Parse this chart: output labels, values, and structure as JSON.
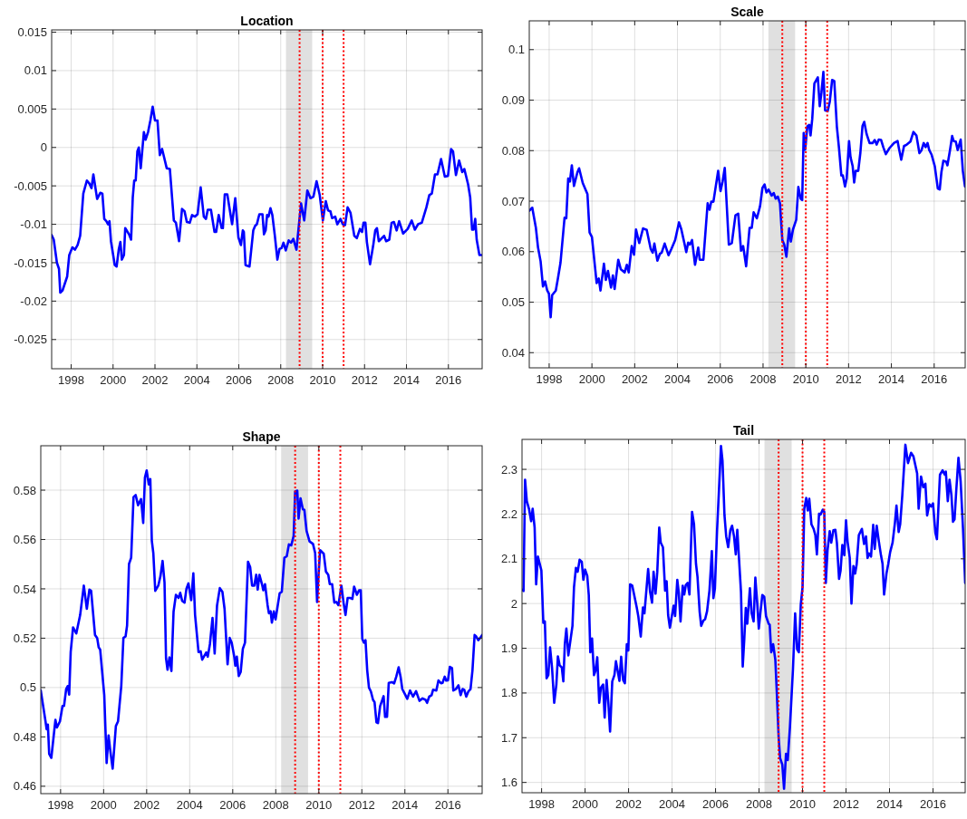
{
  "chart_data": [
    {
      "type": "line",
      "title": "Location",
      "grid": true,
      "xlim": [
        1997.07,
        2017.61
      ],
      "ylim": [
        -0.0288,
        0.0153
      ],
      "xticks": [
        1998,
        2000,
        2002,
        2004,
        2006,
        2008,
        2010,
        2012,
        2014,
        2016
      ],
      "yticks": [
        -0.025,
        -0.02,
        -0.015,
        -0.01,
        -0.005,
        0,
        0.005,
        0.01,
        0.015
      ],
      "bands": [
        {
          "axis": "x",
          "from": 2008.25,
          "to": 2009.5,
          "color": "#e0e0e0"
        }
      ],
      "ref_lines": [
        {
          "axis": "x",
          "value": 2008.9,
          "color": "#ff0000",
          "line_style": "dotted"
        },
        {
          "axis": "x",
          "value": 2010.0,
          "color": "#ff0000",
          "line_style": "dotted"
        },
        {
          "axis": "x",
          "value": 2011.0,
          "color": "#ff0000",
          "line_style": "dotted"
        }
      ],
      "x": [
        1997.07,
        1997.17,
        1997.32,
        1997.42,
        1997.48,
        1997.59,
        1997.81,
        1997.91,
        1998.06,
        1998.18,
        1998.31,
        1998.43,
        1998.58,
        1998.75,
        1998.87,
        1998.97,
        1999.06,
        1999.24,
        1999.39,
        1999.49,
        1999.58,
        1999.68,
        1999.76,
        1999.83,
        1999.9,
        2000.08,
        2000.17,
        2000.27,
        2000.35,
        2000.42,
        2000.52,
        2000.58,
        2000.76,
        2000.86,
        2000.94,
        2001.01,
        2001.08,
        2001.16,
        2001.23,
        2001.32,
        2001.47,
        2001.55,
        2001.67,
        2001.78,
        2001.89,
        2002.0,
        2002.12,
        2002.23,
        2002.34,
        2002.56,
        2002.71,
        2002.9,
        2003.0,
        2003.15,
        2003.29,
        2003.41,
        2003.52,
        2003.66,
        2003.77,
        2003.91,
        2004.03,
        2004.18,
        2004.33,
        2004.43,
        2004.52,
        2004.67,
        2004.84,
        2004.92,
        2005.04,
        2005.18,
        2005.24,
        2005.33,
        2005.45,
        2005.68,
        2005.83,
        2005.98,
        2006.1,
        2006.19,
        2006.24,
        2006.32,
        2006.39,
        2006.51,
        2006.69,
        2006.78,
        2006.86,
        2006.98,
        2007.13,
        2007.2,
        2007.28,
        2007.35,
        2007.42,
        2007.51,
        2007.6,
        2007.72,
        2007.84,
        2007.94,
        2008.04,
        2008.13,
        2008.24,
        2008.38,
        2008.49,
        2008.6,
        2008.75,
        2008.97,
        2009.12,
        2009.27,
        2009.42,
        2009.56,
        2009.71,
        2009.86,
        2010.01,
        2010.15,
        2010.26,
        2010.37,
        2010.45,
        2010.6,
        2010.7,
        2010.85,
        2010.96,
        2011.07,
        2011.19,
        2011.33,
        2011.51,
        2011.63,
        2011.78,
        2011.88,
        2011.95,
        2012.04,
        2012.11,
        2012.26,
        2012.41,
        2012.51,
        2012.59,
        2012.68,
        2012.93,
        2013.03,
        2013.18,
        2013.29,
        2013.4,
        2013.53,
        2013.65,
        2013.84,
        2014.06,
        2014.25,
        2014.4,
        2014.55,
        2014.73,
        2014.95,
        2015.09,
        2015.21,
        2015.36,
        2015.48,
        2015.65,
        2015.83,
        2015.98,
        2016.13,
        2016.22,
        2016.36,
        2016.51,
        2016.66,
        2016.76,
        2016.94,
        2017.04,
        2017.13,
        2017.2,
        2017.28,
        2017.35,
        2017.48,
        2017.57
      ],
      "series": [
        {
          "color": "#0000ff",
          "values": [
            -0.0114,
            -0.012,
            -0.015,
            -0.0158,
            -0.0189,
            -0.0186,
            -0.0168,
            -0.014,
            -0.013,
            -0.0133,
            -0.0127,
            -0.0115,
            -0.006,
            -0.0043,
            -0.0047,
            -0.0053,
            -0.0035,
            -0.0067,
            -0.0059,
            -0.006,
            -0.0093,
            -0.0096,
            -0.01,
            -0.0096,
            -0.0122,
            -0.0153,
            -0.0155,
            -0.0133,
            -0.0123,
            -0.0146,
            -0.014,
            -0.0105,
            -0.0113,
            -0.012,
            -0.0065,
            -0.0043,
            -0.0043,
            -0.0005,
            0.0,
            -0.0027,
            0.002,
            0.001,
            0.002,
            0.0035,
            0.0053,
            0.0035,
            0.0035,
            -0.001,
            -0.0002,
            -0.0027,
            -0.0028,
            -0.0095,
            -0.0098,
            -0.0122,
            -0.008,
            -0.0083,
            -0.0097,
            -0.0098,
            -0.0088,
            -0.009,
            -0.0087,
            -0.0052,
            -0.009,
            -0.0093,
            -0.0081,
            -0.0081,
            -0.011,
            -0.011,
            -0.0088,
            -0.0105,
            -0.0105,
            -0.0061,
            -0.0061,
            -0.01,
            -0.0066,
            -0.0117,
            -0.0127,
            -0.0108,
            -0.011,
            -0.0153,
            -0.0154,
            -0.0155,
            -0.0108,
            -0.0102,
            -0.01,
            -0.0087,
            -0.0087,
            -0.0113,
            -0.0108,
            -0.0088,
            -0.009,
            -0.0079,
            -0.0088,
            -0.0115,
            -0.0146,
            -0.0132,
            -0.0131,
            -0.0124,
            -0.0134,
            -0.0121,
            -0.0124,
            -0.0119,
            -0.0133,
            -0.0073,
            -0.0095,
            -0.0056,
            -0.0066,
            -0.0064,
            -0.0044,
            -0.0062,
            -0.0095,
            -0.007,
            -0.0082,
            -0.0083,
            -0.0092,
            -0.009,
            -0.01,
            -0.0093,
            -0.01,
            -0.0101,
            -0.0078,
            -0.0085,
            -0.0115,
            -0.0118,
            -0.0106,
            -0.011,
            -0.0098,
            -0.0098,
            -0.0123,
            -0.0152,
            -0.0128,
            -0.0108,
            -0.0105,
            -0.0122,
            -0.0115,
            -0.0122,
            -0.012,
            -0.0098,
            -0.0097,
            -0.0108,
            -0.0096,
            -0.0112,
            -0.0106,
            -0.0095,
            -0.0107,
            -0.01,
            -0.0098,
            -0.0078,
            -0.0062,
            -0.006,
            -0.0035,
            -0.0035,
            -0.0015,
            -0.0038,
            -0.0037,
            -0.0002,
            -0.0005,
            -0.0036,
            -0.0017,
            -0.0032,
            -0.0028,
            -0.0048,
            -0.0065,
            -0.0107,
            -0.0107,
            -0.0093,
            -0.012,
            -0.014,
            -0.014
          ]
        }
      ]
    },
    {
      "type": "line",
      "title": "Scale",
      "grid": true,
      "xlim": [
        1997.07,
        2017.45
      ],
      "ylim": [
        0.037,
        0.1057
      ],
      "xticks": [
        1998,
        2000,
        2002,
        2004,
        2006,
        2008,
        2010,
        2012,
        2014,
        2016
      ],
      "yticks": [
        0.04,
        0.05,
        0.06,
        0.07,
        0.08,
        0.09,
        0.1
      ],
      "bands": [
        {
          "axis": "x",
          "from": 2008.25,
          "to": 2009.5,
          "color": "#e0e0e0"
        }
      ],
      "ref_lines": [
        {
          "axis": "x",
          "value": 2008.9,
          "color": "#ff0000",
          "line_style": "dotted"
        },
        {
          "axis": "x",
          "value": 2010.0,
          "color": "#ff0000",
          "line_style": "dotted"
        },
        {
          "axis": "x",
          "value": 2011.0,
          "color": "#ff0000",
          "line_style": "dotted"
        }
      ],
      "x": [
        1997.07,
        1997.21,
        1997.38,
        1997.48,
        1997.6,
        1997.71,
        1997.81,
        1997.91,
        1997.99,
        1998.07,
        1998.14,
        1998.31,
        1998.41,
        1998.53,
        1998.72,
        1998.8,
        1998.89,
        1998.97,
        1999.06,
        1999.16,
        1999.32,
        1999.4,
        1999.57,
        1999.79,
        1999.89,
        2000.0,
        2000.22,
        2000.32,
        2000.4,
        2000.56,
        2000.65,
        2000.75,
        2000.89,
        2000.98,
        2001.06,
        2001.23,
        2001.35,
        2001.53,
        2001.63,
        2001.72,
        2001.86,
        2001.97,
        2002.06,
        2002.21,
        2002.39,
        2002.56,
        2002.75,
        2002.84,
        2002.92,
        2003.06,
        2003.18,
        2003.26,
        2003.4,
        2003.58,
        2003.72,
        2003.89,
        2004.07,
        2004.18,
        2004.32,
        2004.41,
        2004.5,
        2004.58,
        2004.68,
        2004.82,
        2004.97,
        2005.04,
        2005.21,
        2005.41,
        2005.5,
        2005.58,
        2005.68,
        2005.9,
        2006.01,
        2006.11,
        2006.21,
        2006.4,
        2006.54,
        2006.71,
        2006.84,
        2006.97,
        2007.07,
        2007.21,
        2007.37,
        2007.47,
        2007.56,
        2007.71,
        2007.86,
        2007.97,
        2008.07,
        2008.16,
        2008.26,
        2008.4,
        2008.5,
        2008.59,
        2008.69,
        2008.79,
        2008.9,
        2008.99,
        2009.09,
        2009.22,
        2009.3,
        2009.4,
        2009.55,
        2009.65,
        2009.76,
        2009.83,
        2009.9,
        2009.97,
        2010.07,
        2010.16,
        2010.22,
        2010.3,
        2010.4,
        2010.56,
        2010.65,
        2010.73,
        2010.82,
        2010.9,
        2011.02,
        2011.12,
        2011.23,
        2011.33,
        2011.45,
        2011.55,
        2011.66,
        2011.73,
        2011.83,
        2011.91,
        2012.02,
        2012.09,
        2012.19,
        2012.26,
        2012.33,
        2012.45,
        2012.55,
        2012.65,
        2012.73,
        2012.84,
        2012.98,
        2013.12,
        2013.22,
        2013.31,
        2013.41,
        2013.52,
        2013.62,
        2013.74,
        2013.91,
        2014.12,
        2014.29,
        2014.35,
        2014.46,
        2014.59,
        2014.72,
        2014.89,
        2015.03,
        2015.17,
        2015.31,
        2015.41,
        2015.51,
        2015.6,
        2015.69,
        2015.77,
        2015.88,
        2016.03,
        2016.17,
        2016.26,
        2016.34,
        2016.43,
        2016.56,
        2016.62,
        2016.74,
        2016.84,
        2016.91,
        2017.01,
        2017.1,
        2017.24,
        2017.34,
        2017.44
      ],
      "series": [
        {
          "color": "#0000ff",
          "values": [
            0.0681,
            0.0687,
            0.0647,
            0.0608,
            0.0581,
            0.0531,
            0.0541,
            0.0523,
            0.0517,
            0.047,
            0.0514,
            0.0523,
            0.0547,
            0.0578,
            0.0667,
            0.0666,
            0.0745,
            0.0739,
            0.0771,
            0.073,
            0.0757,
            0.0765,
            0.0736,
            0.0714,
            0.0638,
            0.0629,
            0.0538,
            0.0547,
            0.0523,
            0.0576,
            0.0544,
            0.0562,
            0.0529,
            0.0553,
            0.0526,
            0.0584,
            0.0565,
            0.0559,
            0.0574,
            0.0559,
            0.0611,
            0.0594,
            0.0644,
            0.0617,
            0.0646,
            0.0643,
            0.0605,
            0.0598,
            0.0616,
            0.0582,
            0.0596,
            0.0598,
            0.0616,
            0.0593,
            0.0606,
            0.0623,
            0.0658,
            0.0644,
            0.0617,
            0.0599,
            0.0618,
            0.0614,
            0.0623,
            0.0574,
            0.0608,
            0.0584,
            0.0584,
            0.0696,
            0.0683,
            0.0699,
            0.0699,
            0.076,
            0.072,
            0.0739,
            0.0766,
            0.0614,
            0.0617,
            0.0672,
            0.0675,
            0.0602,
            0.0611,
            0.0571,
            0.0647,
            0.0647,
            0.0678,
            0.0666,
            0.069,
            0.0726,
            0.0733,
            0.0717,
            0.0723,
            0.0711,
            0.0716,
            0.0705,
            0.0709,
            0.0696,
            0.0623,
            0.0614,
            0.059,
            0.0646,
            0.062,
            0.0644,
            0.0663,
            0.0728,
            0.0705,
            0.0702,
            0.0835,
            0.0802,
            0.0848,
            0.0851,
            0.083,
            0.0863,
            0.0933,
            0.0945,
            0.0888,
            0.0915,
            0.0956,
            0.088,
            0.0878,
            0.0897,
            0.094,
            0.0938,
            0.0848,
            0.0805,
            0.0751,
            0.0751,
            0.0729,
            0.0745,
            0.0819,
            0.0787,
            0.0769,
            0.0737,
            0.076,
            0.076,
            0.0796,
            0.0849,
            0.0857,
            0.0833,
            0.0815,
            0.0815,
            0.0821,
            0.0812,
            0.0822,
            0.0821,
            0.0807,
            0.0793,
            0.0805,
            0.0815,
            0.0819,
            0.0805,
            0.0782,
            0.0809,
            0.0812,
            0.0818,
            0.0837,
            0.083,
            0.0795,
            0.0801,
            0.0815,
            0.0807,
            0.0815,
            0.0801,
            0.0792,
            0.0769,
            0.0725,
            0.0723,
            0.0758,
            0.078,
            0.0778,
            0.0771,
            0.0801,
            0.0829,
            0.0819,
            0.0818,
            0.0801,
            0.0822,
            0.076,
            0.0729
          ]
        }
      ]
    },
    {
      "type": "line",
      "title": "Shape",
      "grid": true,
      "xlim": [
        1997.08,
        2017.59
      ],
      "ylim": [
        0.457,
        0.598
      ],
      "xticks": [
        1998,
        2000,
        2002,
        2004,
        2006,
        2008,
        2010,
        2012,
        2014,
        2016
      ],
      "yticks": [
        0.46,
        0.48,
        0.5,
        0.52,
        0.54,
        0.56,
        0.58
      ],
      "bands": [
        {
          "axis": "x",
          "from": 2008.25,
          "to": 2009.5,
          "color": "#e0e0e0"
        }
      ],
      "ref_lines": [
        {
          "axis": "x",
          "value": 2008.9,
          "color": "#ff0000",
          "line_style": "dotted"
        },
        {
          "axis": "x",
          "value": 2010.0,
          "color": "#ff0000",
          "line_style": "dotted"
        },
        {
          "axis": "x",
          "value": 2011.0,
          "color": "#ff0000",
          "line_style": "dotted"
        }
      ],
      "x": [
        1997.08,
        1997.18,
        1997.3,
        1997.35,
        1997.41,
        1997.47,
        1997.57,
        1997.76,
        1997.83,
        1997.97,
        1998.09,
        1998.16,
        1998.26,
        1998.33,
        1998.4,
        1998.47,
        1998.58,
        1998.73,
        1998.91,
        1999.08,
        1999.22,
        1999.34,
        1999.42,
        1999.6,
        1999.7,
        1999.77,
        1999.84,
        2000.03,
        2000.14,
        2000.23,
        2000.31,
        2000.42,
        2000.57,
        2000.67,
        2000.82,
        2000.92,
        2001.02,
        2001.09,
        2001.18,
        2001.28,
        2001.39,
        2001.49,
        2001.6,
        2001.74,
        2001.84,
        2001.92,
        2002.0,
        2002.1,
        2002.17,
        2002.24,
        2002.31,
        2002.4,
        2002.54,
        2002.64,
        2002.74,
        2002.83,
        2002.9,
        2002.97,
        2003.06,
        2003.15,
        2003.25,
        2003.36,
        2003.48,
        2003.56,
        2003.65,
        2003.76,
        2003.85,
        2003.94,
        2004.07,
        2004.17,
        2004.25,
        2004.41,
        2004.51,
        2004.58,
        2004.77,
        2004.84,
        2004.94,
        2005.06,
        2005.16,
        2005.27,
        2005.4,
        2005.52,
        2005.62,
        2005.76,
        2005.86,
        2005.95,
        2006.07,
        2006.12,
        2006.19,
        2006.28,
        2006.37,
        2006.47,
        2006.57,
        2006.71,
        2006.81,
        2006.9,
        2007.0,
        2007.09,
        2007.16,
        2007.24,
        2007.36,
        2007.42,
        2007.5,
        2007.62,
        2007.68,
        2007.76,
        2007.82,
        2007.91,
        2007.99,
        2008.18,
        2008.28,
        2008.4,
        2008.51,
        2008.61,
        2008.72,
        2008.83,
        2008.9,
        2009.0,
        2009.06,
        2009.15,
        2009.26,
        2009.33,
        2009.43,
        2009.57,
        2009.73,
        2009.83,
        2009.92,
        2009.98,
        2010.06,
        2010.23,
        2010.33,
        2010.44,
        2010.51,
        2010.62,
        2010.72,
        2010.81,
        2010.91,
        2011.05,
        2011.15,
        2011.24,
        2011.34,
        2011.46,
        2011.56,
        2011.64,
        2011.77,
        2011.87,
        2011.95,
        2012.02,
        2012.1,
        2012.17,
        2012.25,
        2012.33,
        2012.42,
        2012.52,
        2012.59,
        2012.68,
        2012.75,
        2012.85,
        2013.01,
        2013.08,
        2013.17,
        2013.25,
        2013.4,
        2013.5,
        2013.6,
        2013.71,
        2013.8,
        2013.88,
        2013.99,
        2014.11,
        2014.24,
        2014.38,
        2014.52,
        2014.68,
        2014.82,
        2014.96,
        2015.03,
        2015.13,
        2015.24,
        2015.31,
        2015.46,
        2015.56,
        2015.68,
        2015.75,
        2015.85,
        2015.92,
        2016.0,
        2016.09,
        2016.19,
        2016.25,
        2016.37,
        2016.49,
        2016.59,
        2016.68,
        2016.76,
        2016.85,
        2016.95,
        2017.05,
        2017.14,
        2017.24,
        2017.31,
        2017.41,
        2017.5,
        2017.59
      ],
      "series": [
        {
          "color": "#0000ff",
          "values": [
            0.4988,
            0.4931,
            0.4863,
            0.4831,
            0.485,
            0.4731,
            0.4715,
            0.4869,
            0.4838,
            0.4863,
            0.4925,
            0.4925,
            0.4994,
            0.5006,
            0.4971,
            0.5144,
            0.5244,
            0.5219,
            0.5294,
            0.5413,
            0.5319,
            0.5397,
            0.5392,
            0.5213,
            0.5201,
            0.5163,
            0.5154,
            0.4969,
            0.4694,
            0.4806,
            0.4744,
            0.4671,
            0.4844,
            0.4863,
            0.5006,
            0.5201,
            0.5207,
            0.5251,
            0.5501,
            0.5526,
            0.5772,
            0.578,
            0.5739,
            0.5764,
            0.5667,
            0.5851,
            0.588,
            0.5823,
            0.5845,
            0.5595,
            0.5545,
            0.5392,
            0.5413,
            0.5451,
            0.5513,
            0.5426,
            0.5119,
            0.5072,
            0.5122,
            0.5067,
            0.5307,
            0.5376,
            0.5363,
            0.5384,
            0.5351,
            0.5344,
            0.5401,
            0.5422,
            0.5354,
            0.5463,
            0.5294,
            0.5144,
            0.5147,
            0.5113,
            0.5142,
            0.5125,
            0.5176,
            0.5282,
            0.5138,
            0.5332,
            0.5403,
            0.5388,
            0.5319,
            0.5094,
            0.5201,
            0.5182,
            0.5125,
            0.5088,
            0.5125,
            0.5047,
            0.5063,
            0.5157,
            0.5182,
            0.551,
            0.5488,
            0.5413,
            0.5413,
            0.5457,
            0.5397,
            0.5457,
            0.5419,
            0.5394,
            0.5419,
            0.5334,
            0.5301,
            0.5309,
            0.5263,
            0.5309,
            0.5276,
            0.5382,
            0.5388,
            0.5526,
            0.5532,
            0.558,
            0.5576,
            0.5614,
            0.5795,
            0.5798,
            0.5685,
            0.5767,
            0.5722,
            0.572,
            0.5635,
            0.5592,
            0.5582,
            0.5545,
            0.5347,
            0.5445,
            0.5557,
            0.5542,
            0.547,
            0.5457,
            0.5419,
            0.5419,
            0.5344,
            0.5347,
            0.5334,
            0.5413,
            0.5344,
            0.5294,
            0.5363,
            0.5363,
            0.5359,
            0.5409,
            0.5376,
            0.5394,
            0.5394,
            0.5197,
            0.5182,
            0.5192,
            0.5069,
            0.5,
            0.4984,
            0.495,
            0.4941,
            0.4859,
            0.4856,
            0.4925,
            0.4965,
            0.4881,
            0.4881,
            0.5019,
            0.5022,
            0.5017,
            0.5044,
            0.5082,
            0.5044,
            0.4994,
            0.4975,
            0.4954,
            0.4988,
            0.4963,
            0.4985,
            0.4946,
            0.4956,
            0.495,
            0.4938,
            0.4963,
            0.4969,
            0.4991,
            0.4988,
            0.5029,
            0.5017,
            0.5019,
            0.5044,
            0.5028,
            0.5029,
            0.5084,
            0.5079,
            0.4988,
            0.4994,
            0.5009,
            0.4969,
            0.4994,
            0.4991,
            0.4963,
            0.4984,
            0.4994,
            0.5069,
            0.5213,
            0.5207,
            0.5192,
            0.5201,
            0.5213
          ]
        }
      ]
    },
    {
      "type": "line",
      "title": "Tail",
      "grid": true,
      "xlim": [
        1997.1,
        2017.48
      ],
      "ylim": [
        1.577,
        2.367
      ],
      "xticks": [
        1998,
        2000,
        2002,
        2004,
        2006,
        2008,
        2010,
        2012,
        2014,
        2016
      ],
      "yticks": [
        1.6,
        1.7,
        1.8,
        1.9,
        2,
        2.1,
        2.2,
        2.3
      ],
      "bands": [
        {
          "axis": "x",
          "from": 2008.25,
          "to": 2009.5,
          "color": "#e0e0e0"
        }
      ],
      "ref_lines": [
        {
          "axis": "x",
          "value": 2008.9,
          "color": "#ff0000",
          "line_style": "dotted"
        },
        {
          "axis": "x",
          "value": 2010.0,
          "color": "#ff0000",
          "line_style": "dotted"
        },
        {
          "axis": "x",
          "value": 2011.0,
          "color": "#ff0000",
          "line_style": "dotted"
        }
      ],
      "x": [
        1997.1,
        1997.17,
        1997.24,
        1997.32,
        1997.42,
        1997.52,
        1997.59,
        1997.68,
        1997.75,
        1997.83,
        1997.99,
        1998.08,
        1998.15,
        1998.23,
        1998.31,
        1998.39,
        1998.48,
        1998.58,
        1998.68,
        1998.75,
        1998.83,
        1998.93,
        1999.0,
        1999.07,
        1999.14,
        1999.23,
        1999.42,
        1999.49,
        1999.58,
        1999.66,
        1999.75,
        1999.85,
        1999.92,
        2000.0,
        2000.1,
        2000.17,
        2000.24,
        2000.32,
        2000.41,
        2000.48,
        2000.56,
        2000.65,
        2000.73,
        2000.83,
        2000.9,
        2000.99,
        2001.07,
        2001.15,
        2001.25,
        2001.35,
        2001.42,
        2001.58,
        2001.66,
        2001.75,
        2001.83,
        2001.92,
        2001.99,
        2002.07,
        2002.17,
        2002.38,
        2002.45,
        2002.56,
        2002.66,
        2002.73,
        2002.9,
        2002.99,
        2003.08,
        2003.15,
        2003.24,
        2003.32,
        2003.41,
        2003.48,
        2003.58,
        2003.68,
        2003.75,
        2003.82,
        2003.9,
        2004.07,
        2004.14,
        2004.24,
        2004.31,
        2004.39,
        2004.49,
        2004.56,
        2004.63,
        2004.72,
        2004.8,
        2004.92,
        2005.01,
        2005.1,
        2005.17,
        2005.27,
        2005.34,
        2005.44,
        2005.52,
        2005.61,
        2005.72,
        2005.83,
        2005.9,
        2005.97,
        2006.07,
        2006.15,
        2006.25,
        2006.32,
        2006.41,
        2006.49,
        2006.58,
        2006.68,
        2006.76,
        2006.85,
        2006.93,
        2007.0,
        2007.17,
        2007.25,
        2007.32,
        2007.39,
        2007.46,
        2007.58,
        2007.66,
        2007.75,
        2007.83,
        2007.92,
        2007.99,
        2008.06,
        2008.15,
        2008.24,
        2008.32,
        2008.44,
        2008.49,
        2008.56,
        2008.65,
        2008.75,
        2008.82,
        2008.9,
        2008.97,
        2009.07,
        2009.15,
        2009.24,
        2009.32,
        2009.42,
        2009.56,
        2009.66,
        2009.75,
        2009.83,
        2009.92,
        2010.0,
        2010.08,
        2010.17,
        2010.24,
        2010.31,
        2010.41,
        2010.51,
        2010.59,
        2010.66,
        2010.76,
        2010.83,
        2010.93,
        2011.0,
        2011.07,
        2011.15,
        2011.25,
        2011.32,
        2011.42,
        2011.51,
        2011.58,
        2011.68,
        2011.75,
        2011.83,
        2011.92,
        2012.0,
        2012.07,
        2012.17,
        2012.25,
        2012.34,
        2012.42,
        2012.49,
        2012.59,
        2012.73,
        2012.83,
        2012.92,
        2012.99,
        2013.06,
        2013.15,
        2013.25,
        2013.32,
        2013.41,
        2013.51,
        2013.61,
        2013.68,
        2013.75,
        2013.86,
        2013.94,
        2014.03,
        2014.14,
        2014.25,
        2014.32,
        2014.42,
        2014.49,
        2014.59,
        2014.73,
        2014.85,
        2014.99,
        2015.1,
        2015.27,
        2015.34,
        2015.45,
        2015.55,
        2015.65,
        2015.73,
        2015.83,
        2015.92,
        2016.0,
        2016.11,
        2016.18,
        2016.32,
        2016.44,
        2016.54,
        2016.59,
        2016.68,
        2016.76,
        2016.85,
        2016.92,
        2016.99,
        2017.07,
        2017.17,
        2017.27,
        2017.38,
        2017.48
      ],
      "series": [
        {
          "color": "#0000ff",
          "values": [
            2.031,
            2.028,
            2.277,
            2.229,
            2.212,
            2.184,
            2.212,
            2.17,
            2.043,
            2.105,
            2.074,
            1.957,
            1.96,
            1.833,
            1.84,
            1.902,
            1.857,
            1.778,
            1.819,
            1.882,
            1.862,
            1.857,
            1.826,
            1.91,
            1.944,
            1.884,
            1.95,
            2.036,
            2.08,
            2.071,
            2.098,
            2.093,
            2.053,
            2.076,
            2.062,
            2.019,
            1.891,
            1.922,
            1.84,
            1.85,
            1.88,
            1.778,
            1.812,
            1.819,
            1.745,
            1.829,
            1.778,
            1.714,
            1.826,
            1.84,
            1.871,
            1.827,
            1.881,
            1.829,
            1.822,
            1.909,
            1.895,
            2.043,
            2.04,
            1.99,
            1.971,
            1.926,
            1.991,
            1.978,
            2.077,
            2.026,
            2.002,
            2.071,
            2.022,
            2.071,
            2.17,
            2.136,
            2.126,
            2.029,
            2.05,
            1.974,
            1.946,
            1.995,
            1.972,
            2.053,
            2.024,
            1.96,
            2.04,
            2.02,
            2.041,
            2.046,
            2.02,
            2.205,
            2.177,
            2.089,
            2.06,
            1.981,
            1.95,
            1.962,
            1.965,
            1.983,
            2.029,
            2.117,
            2.012,
            2.033,
            2.164,
            2.246,
            2.352,
            2.319,
            2.198,
            2.15,
            2.126,
            2.164,
            2.174,
            2.15,
            2.11,
            2.165,
            2.026,
            1.859,
            1.919,
            1.99,
            1.955,
            2.034,
            1.978,
            1.96,
            2.058,
            1.998,
            1.944,
            1.978,
            2.019,
            2.015,
            1.972,
            1.955,
            1.953,
            1.891,
            1.909,
            1.874,
            1.798,
            1.702,
            1.654,
            1.64,
            1.586,
            1.664,
            1.65,
            1.723,
            1.853,
            1.978,
            1.898,
            1.891,
            1.998,
            2.036,
            2.212,
            2.236,
            2.208,
            2.234,
            2.177,
            2.167,
            2.153,
            2.11,
            2.201,
            2.199,
            2.21,
            2.205,
            2.046,
            2.119,
            2.162,
            2.136,
            2.164,
            2.165,
            2.136,
            2.055,
            2.074,
            2.131,
            2.108,
            2.186,
            2.139,
            2.103,
            2.0,
            2.084,
            2.067,
            2.088,
            2.153,
            2.167,
            2.133,
            2.15,
            2.102,
            2.112,
            2.105,
            2.176,
            2.122,
            2.174,
            2.139,
            2.107,
            2.089,
            2.02,
            2.067,
            2.088,
            2.115,
            2.136,
            2.181,
            2.219,
            2.16,
            2.177,
            2.243,
            2.355,
            2.314,
            2.337,
            2.329,
            2.291,
            2.212,
            2.284,
            2.26,
            2.268,
            2.197,
            2.222,
            2.217,
            2.224,
            2.158,
            2.144,
            2.288,
            2.298,
            2.288,
            2.295,
            2.229,
            2.277,
            2.241,
            2.183,
            2.188,
            2.253,
            2.326,
            2.274,
            2.167,
            2.046
          ]
        }
      ]
    }
  ]
}
